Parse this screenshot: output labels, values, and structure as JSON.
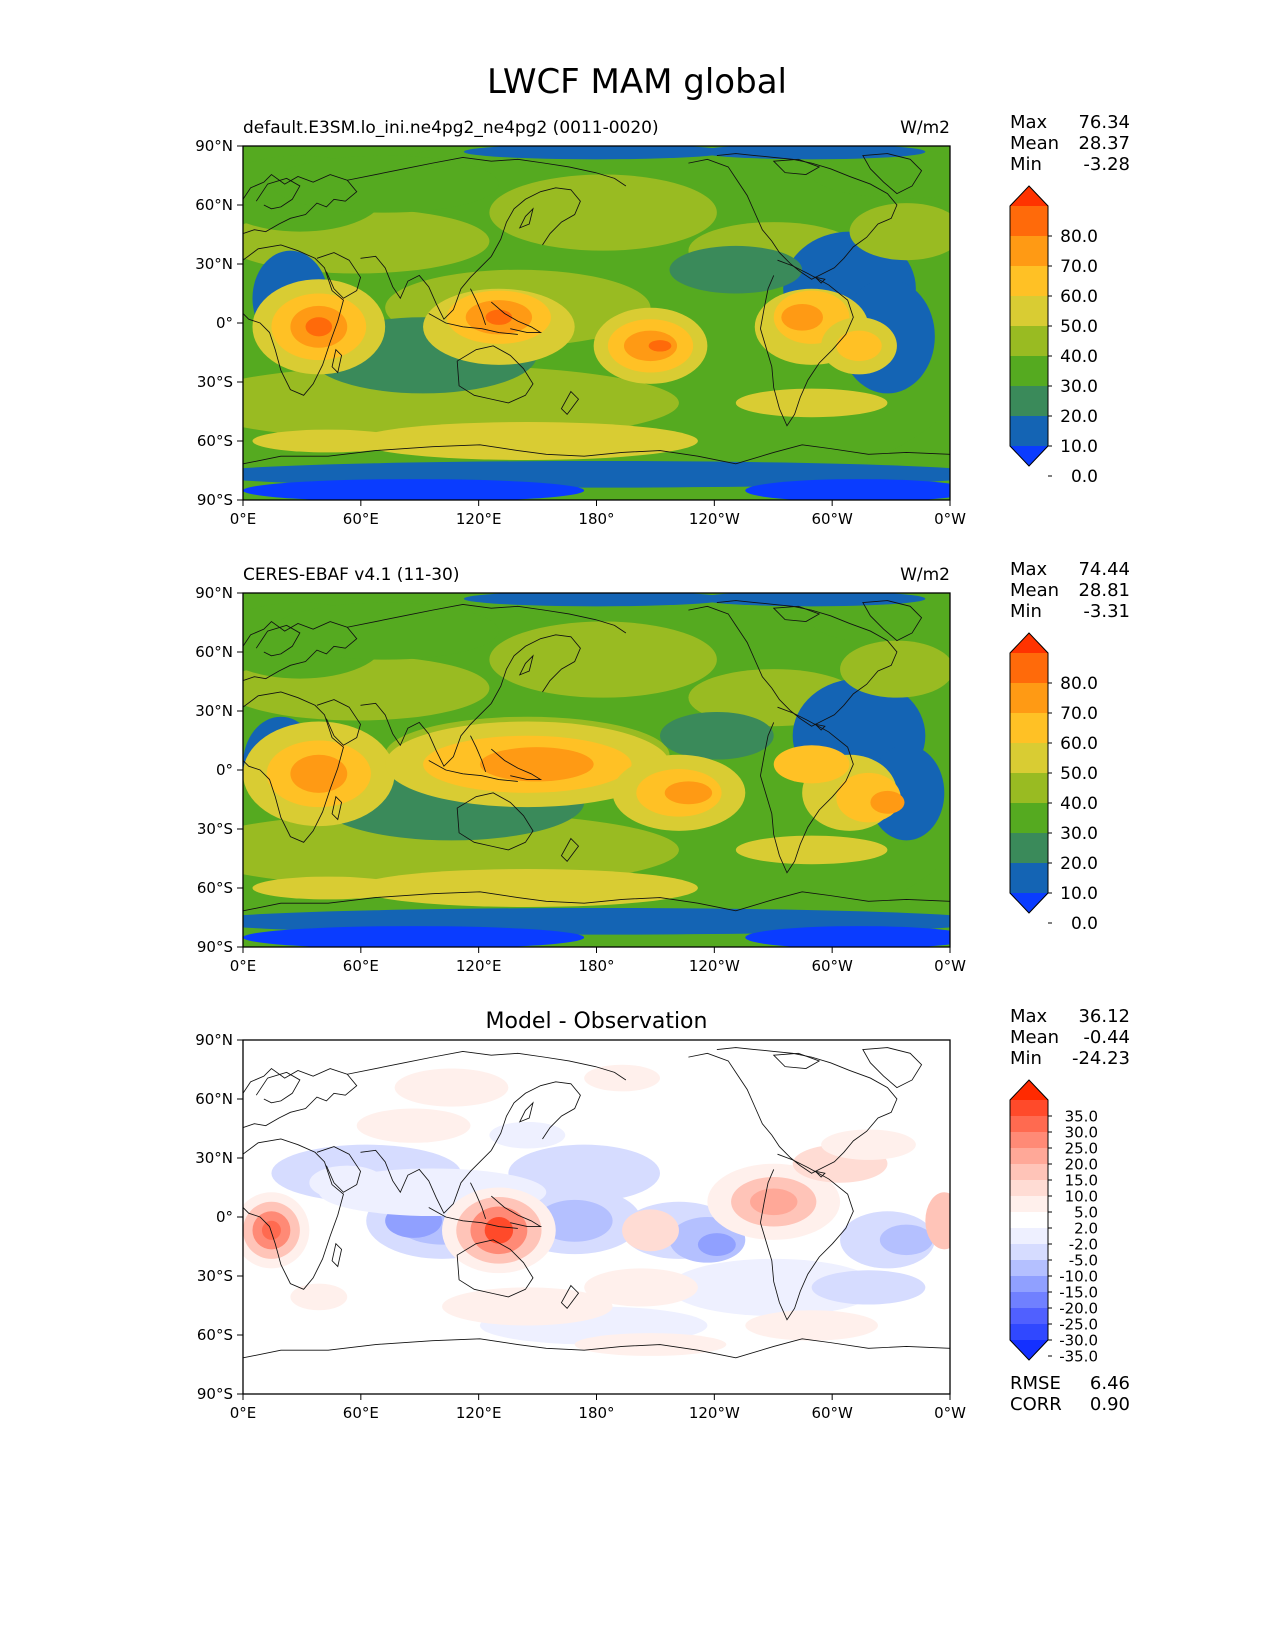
{
  "title": "LWCF MAM global",
  "x_ticks": [
    "0°E",
    "60°E",
    "120°E",
    "180°",
    "120°W",
    "60°W",
    "0°W"
  ],
  "y_ticks": [
    "90°N",
    "60°N",
    "30°N",
    "0°",
    "30°S",
    "60°S",
    "90°S"
  ],
  "stat_labels": {
    "max": "Max",
    "mean": "Mean",
    "min": "Min"
  },
  "panels": [
    {
      "left_title": "default.E3SM.lo_ini.ne4pg2_ne4pg2 (0011-0020)",
      "center_title": "",
      "units": "W/m2",
      "stats": {
        "max": "76.34",
        "mean": "28.37",
        "min": "-3.28"
      },
      "colorbar": {
        "labels": [
          "80.0",
          "70.0",
          "60.0",
          "50.0",
          "40.0",
          "30.0",
          "20.0",
          "10.0",
          "0.0"
        ],
        "colors": [
          "#ff3300",
          "#ff6a0a",
          "#ff9a14",
          "#ffc125",
          "#d9cc33",
          "#99bb22",
          "#55aa20",
          "#3a8a5a",
          "#1464b4",
          "#0a3cff"
        ]
      }
    },
    {
      "left_title": "CERES-EBAF v4.1 (11-30)",
      "center_title": "",
      "units": "W/m2",
      "stats": {
        "max": "74.44",
        "mean": "28.81",
        "min": "-3.31"
      },
      "colorbar": {
        "labels": [
          "80.0",
          "70.0",
          "60.0",
          "50.0",
          "40.0",
          "30.0",
          "20.0",
          "10.0",
          "0.0"
        ],
        "colors": [
          "#ff3300",
          "#ff6a0a",
          "#ff9a14",
          "#ffc125",
          "#d9cc33",
          "#99bb22",
          "#55aa20",
          "#3a8a5a",
          "#1464b4",
          "#0a3cff"
        ]
      }
    },
    {
      "left_title": "",
      "center_title": "Model - Observation",
      "units": "",
      "stats": {
        "max": "36.12",
        "mean": "-0.44",
        "min": "-24.23"
      },
      "colorbar": {
        "labels": [
          "35.0",
          "30.0",
          "25.0",
          "20.0",
          "15.0",
          "10.0",
          "5.0",
          "2.0",
          "-2.0",
          "-5.0",
          "-10.0",
          "-15.0",
          "-20.0",
          "-25.0",
          "-30.0",
          "-35.0"
        ],
        "colors": [
          "#ff2a00",
          "#ff4a2a",
          "#ff6a50",
          "#ff8a76",
          "#ffa898",
          "#ffc4b8",
          "#ffdcd4",
          "#fff0ec",
          "#ffffff",
          "#eef0ff",
          "#d6dcff",
          "#b4c0ff",
          "#90a0ff",
          "#7080ff",
          "#5060ff",
          "#3048ff",
          "#1430ff"
        ]
      }
    }
  ],
  "diff_metrics": {
    "rmse_label": "RMSE",
    "rmse": "6.46",
    "corr_label": "CORR",
    "corr": "0.90"
  }
}
